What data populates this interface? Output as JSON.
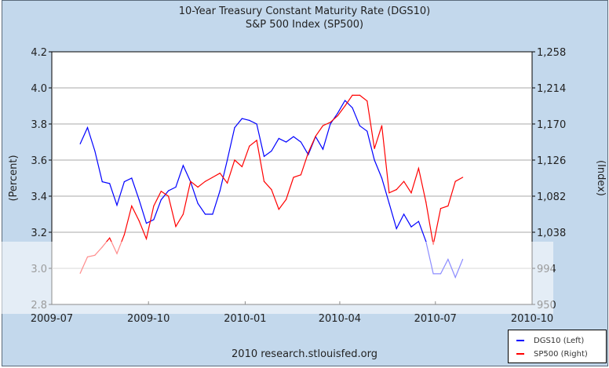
{
  "chart_data": {
    "type": "line",
    "title": "10-Year Treasury Constant Maturity Rate (DGS10)",
    "subtitle": "S&P 500 Index (SP500)",
    "ylabel": "(Percent)",
    "y2label": "(Index)",
    "ylim": [
      2.8,
      4.2
    ],
    "y2lim": [
      950,
      1258
    ],
    "yticks": [
      "2.8",
      "3.0",
      "3.2",
      "3.4",
      "3.6",
      "3.8",
      "4.0",
      "4.2"
    ],
    "y2ticks": [
      "950",
      "994",
      "1,038",
      "1,082",
      "1,126",
      "1,170",
      "1,214",
      "1,258"
    ],
    "xlim": [
      "2009-07-01",
      "2010-10-01"
    ],
    "xticks": [
      "2009-07",
      "2009-10",
      "2010-01",
      "2010-04",
      "2010-07",
      "2010-10"
    ],
    "grid": true,
    "legend_placement": "bottom-right",
    "x": [
      "2009-07-28",
      "2009-08-04",
      "2009-08-11",
      "2009-08-18",
      "2009-08-25",
      "2009-09-01",
      "2009-09-08",
      "2009-09-15",
      "2009-09-22",
      "2009-09-29",
      "2009-10-06",
      "2009-10-13",
      "2009-10-20",
      "2009-10-27",
      "2009-11-03",
      "2009-11-10",
      "2009-11-17",
      "2009-11-24",
      "2009-12-01",
      "2009-12-08",
      "2009-12-15",
      "2009-12-22",
      "2009-12-29",
      "2010-01-05",
      "2010-01-12",
      "2010-01-19",
      "2010-01-26",
      "2010-02-02",
      "2010-02-09",
      "2010-02-16",
      "2010-02-23",
      "2010-03-02",
      "2010-03-09",
      "2010-03-16",
      "2010-03-23",
      "2010-03-30",
      "2010-04-06",
      "2010-04-13",
      "2010-04-20",
      "2010-04-27",
      "2010-05-04",
      "2010-05-11",
      "2010-05-18",
      "2010-05-25",
      "2010-06-01",
      "2010-06-08",
      "2010-06-15",
      "2010-06-22",
      "2010-06-29",
      "2010-07-06",
      "2010-07-13",
      "2010-07-20",
      "2010-07-27"
    ],
    "series": [
      {
        "name": "DGS10 (Left)",
        "axis": "left",
        "color": "#0000ff",
        "values": [
          3.69,
          3.78,
          3.65,
          3.48,
          3.47,
          3.35,
          3.48,
          3.5,
          3.38,
          3.25,
          3.27,
          3.38,
          3.43,
          3.45,
          3.57,
          3.48,
          3.36,
          3.3,
          3.3,
          3.43,
          3.6,
          3.78,
          3.83,
          3.82,
          3.8,
          3.62,
          3.65,
          3.72,
          3.7,
          3.73,
          3.7,
          3.63,
          3.73,
          3.66,
          3.8,
          3.86,
          3.93,
          3.89,
          3.79,
          3.76,
          3.6,
          3.5,
          3.36,
          3.22,
          3.3,
          3.23,
          3.26,
          3.15,
          2.97,
          2.97,
          3.05,
          2.95,
          3.05
        ]
      },
      {
        "name": "SP500 (Right)",
        "axis": "right",
        "color": "#ff0000",
        "values": [
          988,
          1008,
          1010,
          1020,
          1031,
          1012,
          1035,
          1070,
          1052,
          1030,
          1070,
          1088,
          1082,
          1045,
          1060,
          1100,
          1093,
          1100,
          1105,
          1110,
          1098,
          1126,
          1118,
          1143,
          1150,
          1100,
          1090,
          1066,
          1078,
          1105,
          1108,
          1135,
          1155,
          1168,
          1172,
          1180,
          1192,
          1205,
          1205,
          1198,
          1140,
          1168,
          1086,
          1090,
          1100,
          1086,
          1116,
          1075,
          1023,
          1067,
          1070,
          1100,
          1105
        ]
      }
    ]
  },
  "footer": "2010 research.stlouisfed.org",
  "legend": {
    "items": [
      {
        "label": "DGS10 (Left)",
        "color": "#0000ff"
      },
      {
        "label": "SP500 (Right)",
        "color": "#ff0000"
      }
    ]
  }
}
